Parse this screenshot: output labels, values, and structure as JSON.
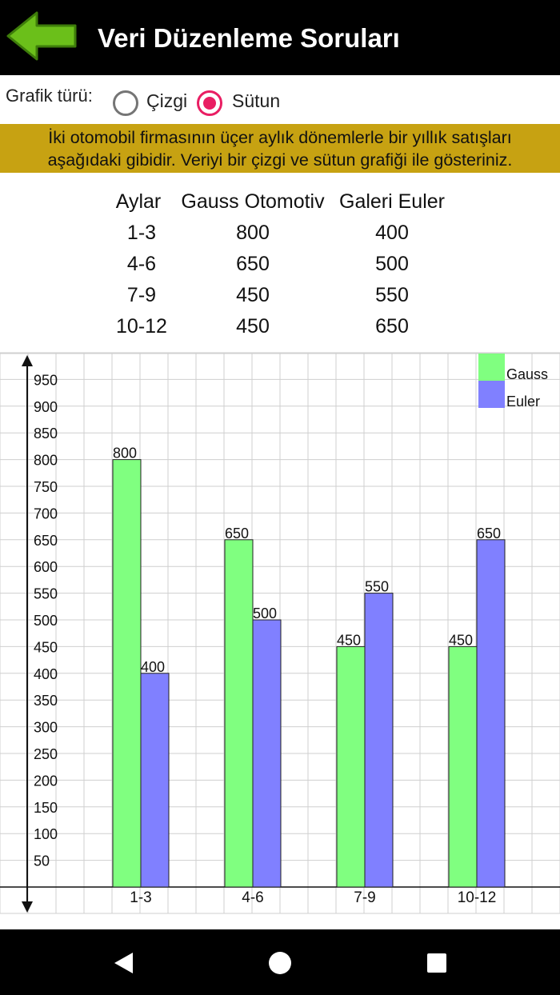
{
  "header": {
    "title": "Veri Düzenleme Soruları",
    "back_icon": "back-arrow-icon"
  },
  "graph_type": {
    "label": "Grafik türü:",
    "options": [
      {
        "label": "Çizgi",
        "checked": false
      },
      {
        "label": "Sütun",
        "checked": true
      }
    ]
  },
  "question": {
    "line1": "İki otomobil firmasının üçer aylık dönemlerle bir yıllık satışları",
    "line2": "aşağıdaki gibidir. Veriyi bir çizgi ve sütun grafiği ile gösteriniz."
  },
  "table": {
    "headers": [
      "Aylar",
      "Gauss Otomotiv",
      "Galeri Euler"
    ],
    "rows": [
      [
        "1-3",
        "800",
        "400"
      ],
      [
        "4-6",
        "650",
        "500"
      ],
      [
        "7-9",
        "450",
        "550"
      ],
      [
        "10-12",
        "450",
        "650"
      ]
    ]
  },
  "chart_data": {
    "type": "bar",
    "categories": [
      "1-3",
      "4-6",
      "7-9",
      "10-12"
    ],
    "series": [
      {
        "name": "Gauss",
        "values": [
          800,
          650,
          450,
          450
        ],
        "color": "#80ff80"
      },
      {
        "name": "Euler",
        "values": [
          400,
          500,
          550,
          650
        ],
        "color": "#8080ff"
      }
    ],
    "yticks": [
      50,
      100,
      150,
      200,
      250,
      300,
      350,
      400,
      450,
      500,
      550,
      600,
      650,
      700,
      750,
      800,
      850,
      900,
      950
    ],
    "ylim": [
      0,
      1000
    ],
    "grid": true,
    "legend": "top-right",
    "data_labels": true
  },
  "nav": {
    "back_icon": "nav-back-icon",
    "home_icon": "nav-home-icon",
    "recents_icon": "nav-recents-icon"
  }
}
